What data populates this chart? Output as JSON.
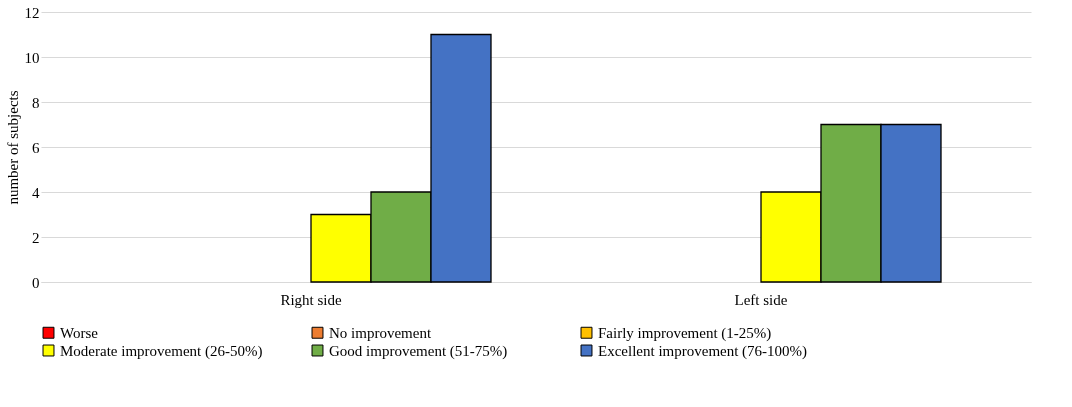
{
  "chart_data": {
    "type": "bar",
    "ylabel": "number of subjects",
    "categories": [
      "Right side",
      "Left side"
    ],
    "series": [
      {
        "name": "Worse",
        "color": "#ff0000",
        "values": [
          0,
          0
        ]
      },
      {
        "name": "No improvement",
        "color": "#ed7d31",
        "values": [
          0,
          0
        ]
      },
      {
        "name": "Fairly improvement (1-25%)",
        "color": "#ffc000",
        "values": [
          0,
          0
        ]
      },
      {
        "name": "Moderate improvement (26-50%)",
        "color": "#ffff00",
        "values": [
          3,
          4
        ]
      },
      {
        "name": "Good improvement (51-75%)",
        "color": "#70ad47",
        "values": [
          4,
          7
        ]
      },
      {
        "name": "Excellent improvement (76-100%)",
        "color": "#4472c4",
        "values": [
          11,
          7
        ]
      }
    ],
    "ylim": [
      0,
      12
    ],
    "yticks": [
      0,
      2,
      4,
      6,
      8,
      10,
      12
    ],
    "grid": "y",
    "legend": "bottom"
  }
}
